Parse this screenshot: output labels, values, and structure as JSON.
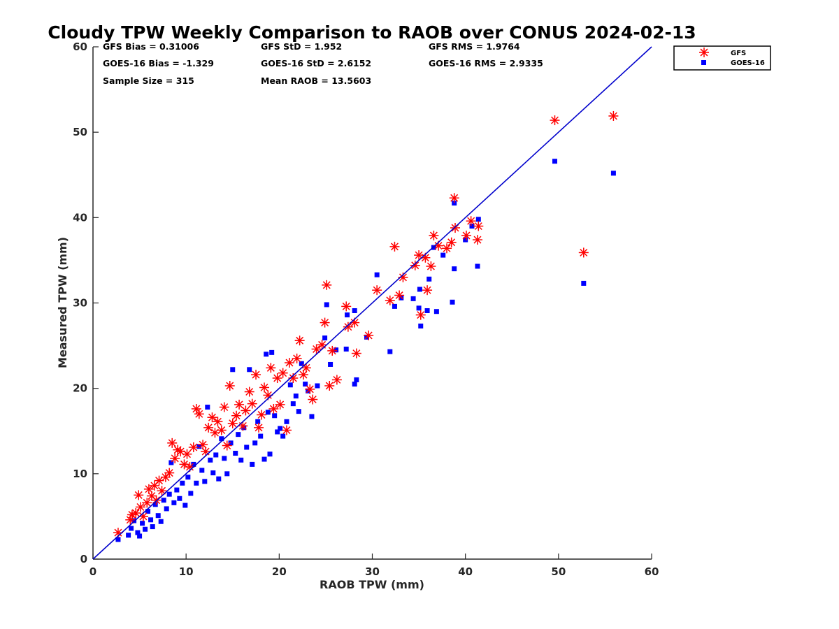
{
  "chart_data": {
    "type": "scatter",
    "title": "Cloudy TPW Weekly Comparison to RAOB over CONUS 2024-02-13",
    "xlabel": "RAOB TPW (mm)",
    "ylabel": "Measured TPW (mm)",
    "xlim": [
      0,
      60
    ],
    "ylim": [
      0,
      60
    ],
    "x_ticks": [
      "0",
      "10",
      "20",
      "30",
      "40",
      "50",
      "60"
    ],
    "y_ticks": [
      "0",
      "10",
      "20",
      "30",
      "40",
      "50",
      "60"
    ],
    "grid": false,
    "legend_position": "top-right, outside plot area",
    "one_to_one_line": {
      "from": [
        0,
        0
      ],
      "to": [
        60,
        60
      ],
      "color": "#0000cc"
    },
    "stats": {
      "gfs_bias": "GFS Bias = 0.31006",
      "gfs_std": "GFS StD = 1.952",
      "gfs_rms": "GFS RMS = 1.9764",
      "goes_bias": "GOES-16 Bias = -1.329",
      "goes_std": "GOES-16 StD = 2.6152",
      "goes_rms": "GOES-16 RMS = 2.9335",
      "sample_size": "Sample Size = 315",
      "mean_raob": "Mean RAOB = 13.5603"
    },
    "series": [
      {
        "name": "GFS",
        "marker": "asterisk",
        "color": "#ff0000",
        "points": [
          [
            2.7,
            3.1
          ],
          [
            4.0,
            4.6
          ],
          [
            4.2,
            5.2
          ],
          [
            4.6,
            5.4
          ],
          [
            4.9,
            7.5
          ],
          [
            5.1,
            6.1
          ],
          [
            5.4,
            5.0
          ],
          [
            5.8,
            6.6
          ],
          [
            6.0,
            8.2
          ],
          [
            6.3,
            7.4
          ],
          [
            6.6,
            8.6
          ],
          [
            6.8,
            6.9
          ],
          [
            7.1,
            9.2
          ],
          [
            7.4,
            8.0
          ],
          [
            7.8,
            9.6
          ],
          [
            8.2,
            10.1
          ],
          [
            8.5,
            13.6
          ],
          [
            8.8,
            11.8
          ],
          [
            9.1,
            12.8
          ],
          [
            9.4,
            12.6
          ],
          [
            9.8,
            11.1
          ],
          [
            10.1,
            12.3
          ],
          [
            10.4,
            10.8
          ],
          [
            10.8,
            13.1
          ],
          [
            11.1,
            17.6
          ],
          [
            11.4,
            17.0
          ],
          [
            11.8,
            13.4
          ],
          [
            12.1,
            12.6
          ],
          [
            12.4,
            15.4
          ],
          [
            12.8,
            16.6
          ],
          [
            13.1,
            14.8
          ],
          [
            13.4,
            16.1
          ],
          [
            13.8,
            15.1
          ],
          [
            14.1,
            17.8
          ],
          [
            14.4,
            13.3
          ],
          [
            14.7,
            20.3
          ],
          [
            15.0,
            15.9
          ],
          [
            15.4,
            16.8
          ],
          [
            15.7,
            18.1
          ],
          [
            16.1,
            15.6
          ],
          [
            16.4,
            17.4
          ],
          [
            16.8,
            19.6
          ],
          [
            17.1,
            18.2
          ],
          [
            17.5,
            21.6
          ],
          [
            17.8,
            15.4
          ],
          [
            18.1,
            16.9
          ],
          [
            18.4,
            20.1
          ],
          [
            18.8,
            19.2
          ],
          [
            19.1,
            22.4
          ],
          [
            19.4,
            17.6
          ],
          [
            19.8,
            21.2
          ],
          [
            20.1,
            18.1
          ],
          [
            20.4,
            21.8
          ],
          [
            20.8,
            15.1
          ],
          [
            21.1,
            23.0
          ],
          [
            21.5,
            21.2
          ],
          [
            21.9,
            23.5
          ],
          [
            22.2,
            25.6
          ],
          [
            22.6,
            21.6
          ],
          [
            22.9,
            22.4
          ],
          [
            23.3,
            19.9
          ],
          [
            23.6,
            18.7
          ],
          [
            24.0,
            24.6
          ],
          [
            24.6,
            25.1
          ],
          [
            24.9,
            27.7
          ],
          [
            25.1,
            32.1
          ],
          [
            25.4,
            20.3
          ],
          [
            25.7,
            24.4
          ],
          [
            26.2,
            21.0
          ],
          [
            27.2,
            29.6
          ],
          [
            27.4,
            27.2
          ],
          [
            28.1,
            27.7
          ],
          [
            28.3,
            24.1
          ],
          [
            29.6,
            26.2
          ],
          [
            30.5,
            31.5
          ],
          [
            31.9,
            30.3
          ],
          [
            32.4,
            36.6
          ],
          [
            32.9,
            30.9
          ],
          [
            33.3,
            33.0
          ],
          [
            34.6,
            34.4
          ],
          [
            35.0,
            35.6
          ],
          [
            35.2,
            28.6
          ],
          [
            35.7,
            35.3
          ],
          [
            35.9,
            31.5
          ],
          [
            36.3,
            34.3
          ],
          [
            36.6,
            37.9
          ],
          [
            37.1,
            36.7
          ],
          [
            38.0,
            36.4
          ],
          [
            38.5,
            37.1
          ],
          [
            38.9,
            38.8
          ],
          [
            38.8,
            42.3
          ],
          [
            40.1,
            37.9
          ],
          [
            40.6,
            39.6
          ],
          [
            41.3,
            37.4
          ],
          [
            41.4,
            39.0
          ],
          [
            49.6,
            51.4
          ],
          [
            52.7,
            35.9
          ],
          [
            55.9,
            51.9
          ]
        ]
      },
      {
        "name": "GOES-16",
        "marker": "square",
        "color": "#0000ff",
        "points": [
          [
            2.7,
            2.3
          ],
          [
            3.8,
            2.8
          ],
          [
            4.1,
            3.6
          ],
          [
            4.4,
            4.5
          ],
          [
            4.8,
            3.1
          ],
          [
            5.0,
            2.7
          ],
          [
            5.3,
            4.2
          ],
          [
            5.6,
            3.5
          ],
          [
            5.9,
            5.6
          ],
          [
            6.2,
            4.6
          ],
          [
            6.4,
            3.8
          ],
          [
            6.7,
            6.4
          ],
          [
            7.0,
            5.1
          ],
          [
            7.3,
            4.4
          ],
          [
            7.6,
            6.9
          ],
          [
            7.9,
            5.9
          ],
          [
            8.2,
            7.6
          ],
          [
            8.4,
            11.3
          ],
          [
            8.7,
            6.6
          ],
          [
            9.0,
            8.1
          ],
          [
            9.3,
            7.1
          ],
          [
            9.6,
            8.9
          ],
          [
            9.9,
            6.3
          ],
          [
            10.2,
            9.6
          ],
          [
            10.5,
            7.7
          ],
          [
            10.8,
            11.1
          ],
          [
            11.1,
            8.9
          ],
          [
            11.4,
            13.2
          ],
          [
            11.7,
            10.4
          ],
          [
            12.0,
            9.1
          ],
          [
            12.3,
            17.8
          ],
          [
            12.6,
            11.6
          ],
          [
            12.9,
            10.1
          ],
          [
            13.2,
            12.2
          ],
          [
            13.5,
            9.4
          ],
          [
            13.8,
            14.1
          ],
          [
            14.1,
            11.8
          ],
          [
            14.4,
            10.0
          ],
          [
            14.8,
            13.6
          ],
          [
            15.0,
            22.2
          ],
          [
            15.3,
            12.4
          ],
          [
            15.6,
            14.6
          ],
          [
            15.9,
            11.6
          ],
          [
            16.2,
            15.4
          ],
          [
            16.5,
            13.1
          ],
          [
            16.8,
            22.2
          ],
          [
            17.1,
            11.1
          ],
          [
            17.4,
            13.6
          ],
          [
            17.7,
            16.1
          ],
          [
            18.0,
            14.4
          ],
          [
            18.4,
            11.7
          ],
          [
            18.6,
            24.0
          ],
          [
            18.8,
            17.2
          ],
          [
            19.0,
            12.3
          ],
          [
            19.2,
            24.2
          ],
          [
            19.5,
            16.8
          ],
          [
            19.8,
            14.9
          ],
          [
            20.1,
            15.3
          ],
          [
            20.4,
            14.4
          ],
          [
            20.8,
            16.1
          ],
          [
            21.2,
            20.4
          ],
          [
            21.5,
            18.2
          ],
          [
            21.8,
            19.1
          ],
          [
            22.1,
            17.3
          ],
          [
            22.4,
            22.9
          ],
          [
            22.8,
            20.5
          ],
          [
            23.1,
            19.7
          ],
          [
            23.5,
            16.7
          ],
          [
            24.1,
            20.3
          ],
          [
            24.9,
            25.9
          ],
          [
            25.1,
            29.8
          ],
          [
            25.5,
            22.8
          ],
          [
            26.1,
            24.5
          ],
          [
            27.2,
            24.6
          ],
          [
            27.3,
            28.6
          ],
          [
            28.1,
            20.5
          ],
          [
            28.3,
            21.0
          ],
          [
            28.1,
            29.1
          ],
          [
            29.4,
            26.0
          ],
          [
            30.5,
            33.3
          ],
          [
            31.9,
            24.3
          ],
          [
            32.4,
            29.6
          ],
          [
            33.1,
            30.6
          ],
          [
            34.4,
            30.5
          ],
          [
            35.0,
            29.4
          ],
          [
            35.2,
            27.3
          ],
          [
            35.1,
            31.6
          ],
          [
            35.9,
            29.1
          ],
          [
            36.1,
            32.8
          ],
          [
            36.6,
            36.5
          ],
          [
            36.9,
            29.0
          ],
          [
            37.6,
            35.6
          ],
          [
            38.6,
            30.1
          ],
          [
            38.8,
            34.0
          ],
          [
            38.8,
            41.7
          ],
          [
            40.0,
            37.4
          ],
          [
            40.7,
            39.0
          ],
          [
            41.3,
            34.3
          ],
          [
            41.4,
            39.8
          ],
          [
            49.6,
            46.6
          ],
          [
            52.7,
            32.3
          ],
          [
            55.9,
            45.2
          ]
        ]
      }
    ]
  }
}
